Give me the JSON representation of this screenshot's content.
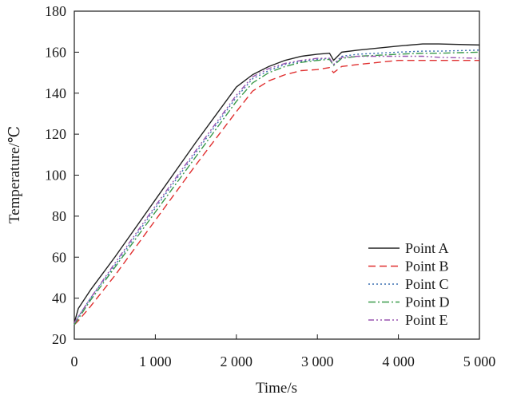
{
  "chart_data": {
    "type": "line",
    "title": "",
    "xlabel": "Time/s",
    "ylabel": "Temperature/℃",
    "xlim": [
      0,
      5000
    ],
    "ylim": [
      20,
      180
    ],
    "x_ticks": [
      0,
      1000,
      2000,
      3000,
      4000,
      5000
    ],
    "x_tick_labels": [
      "0",
      "1 000",
      "2 000",
      "3 000",
      "4 000",
      "5 000"
    ],
    "y_ticks": [
      20,
      40,
      60,
      80,
      100,
      120,
      140,
      160,
      180
    ],
    "y_tick_labels": [
      "20",
      "40",
      "60",
      "80",
      "100",
      "120",
      "140",
      "160",
      "180"
    ],
    "grid": false,
    "legend_position": "bottom-right",
    "series": [
      {
        "name": "Point A",
        "color": "#222222",
        "dash": "solid",
        "x": [
          0,
          50,
          200,
          500,
          1000,
          1500,
          2000,
          2100,
          2200,
          2400,
          2600,
          2800,
          3000,
          3150,
          3200,
          3300,
          3500,
          4000,
          4300,
          4500,
          5000
        ],
        "y": [
          28,
          35,
          44,
          60,
          88,
          116,
          143,
          146,
          149,
          153,
          156,
          158,
          159,
          159.5,
          156,
          160,
          161,
          163,
          164,
          164,
          163.5
        ]
      },
      {
        "name": "Point B",
        "color": "#e03030",
        "dash": "dashed",
        "x": [
          0,
          50,
          200,
          500,
          1000,
          1500,
          2000,
          2200,
          2400,
          2600,
          2800,
          3000,
          3150,
          3200,
          3300,
          3500,
          4000,
          4300,
          4500,
          5000
        ],
        "y": [
          27,
          29,
          36,
          51,
          78,
          105,
          131,
          141,
          146,
          149,
          151,
          151.5,
          152.5,
          150,
          153,
          154,
          156,
          156,
          156,
          156
        ]
      },
      {
        "name": "Point C",
        "color": "#3a6fb0",
        "dash": "dotted",
        "x": [
          0,
          50,
          200,
          500,
          1000,
          1500,
          2000,
          2200,
          2400,
          2600,
          2800,
          3000,
          3150,
          3200,
          3300,
          3500,
          4000,
          4300,
          4500,
          5000
        ],
        "y": [
          27,
          31,
          40,
          56,
          84,
          111,
          138,
          147,
          151,
          154,
          155.5,
          156.5,
          157,
          154,
          158,
          159,
          160,
          160.5,
          160.5,
          161
        ]
      },
      {
        "name": "Point D",
        "color": "#3a9a4a",
        "dash": "dashdot",
        "x": [
          0,
          50,
          200,
          500,
          1000,
          1500,
          2000,
          2200,
          2400,
          2600,
          2800,
          3000,
          3150,
          3200,
          3300,
          3500,
          4000,
          4300,
          4500,
          5000
        ],
        "y": [
          27,
          30,
          39,
          55,
          82,
          109,
          136,
          145,
          150,
          153,
          155,
          156,
          156.5,
          153.5,
          157,
          158,
          159,
          159.5,
          159.5,
          160
        ]
      },
      {
        "name": "Point E",
        "color": "#9a55b0",
        "dash": "dashdotdot",
        "x": [
          0,
          50,
          200,
          500,
          1000,
          1500,
          2000,
          2200,
          2400,
          2600,
          2800,
          3000,
          3150,
          3200,
          3300,
          3500,
          4000,
          4300,
          4500,
          5000
        ],
        "y": [
          28,
          31,
          40,
          57,
          85,
          112,
          139,
          148,
          152,
          154.5,
          156,
          157,
          157,
          154,
          157.5,
          158,
          158,
          158,
          157.5,
          157
        ]
      }
    ]
  }
}
